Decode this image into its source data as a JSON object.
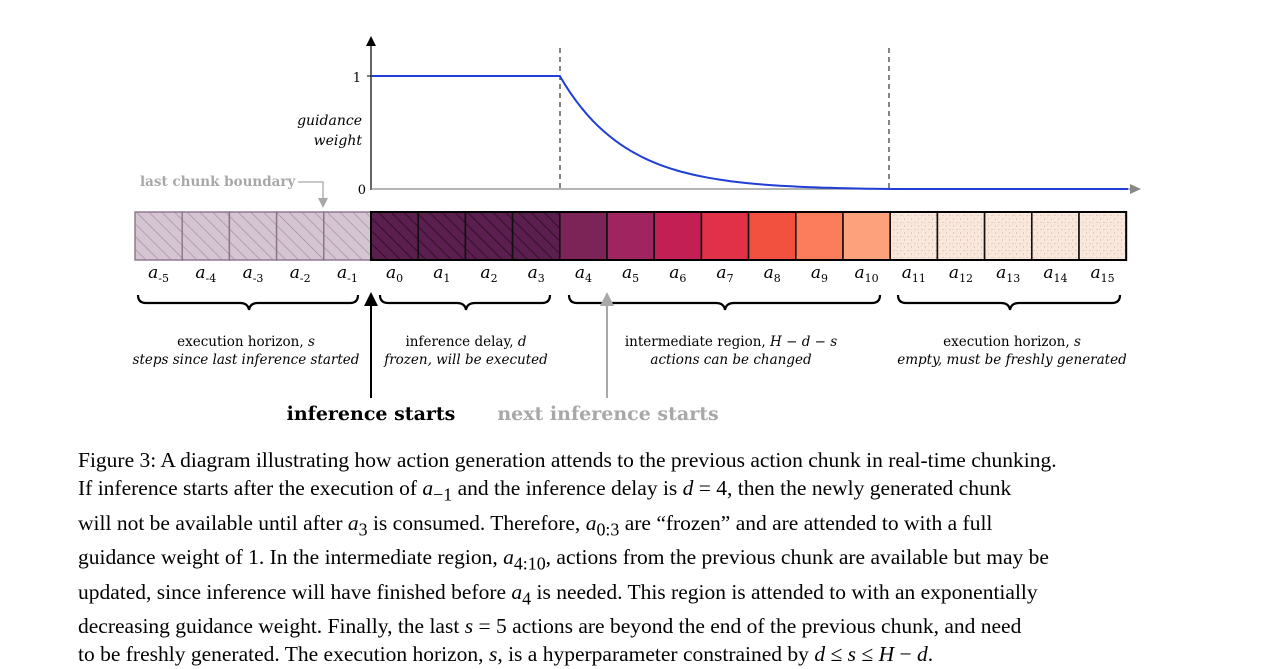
{
  "colors": {
    "curve": "#1f3fd6",
    "past_fill": "#d5c4d2",
    "past_hatch": "#a38aa0",
    "frozen_fill": "#5a1f4e",
    "frozen_hatch": "#2a0a22",
    "intermediate_fills": [
      "#7c2358",
      "#9f2460",
      "#c41f55",
      "#e03148",
      "#f35140",
      "#fb7d5b",
      "#fda07c"
    ],
    "future_fill": "#fbe8dc",
    "future_dots": "#b89a88",
    "gray_text": "#a8a8a8"
  },
  "plot": {
    "y_label_line1": "guidance",
    "y_label_line2": "weight",
    "y_tick_1": "1",
    "y_tick_0": "0",
    "curve_profile": {
      "flat_weight": 1,
      "flat_until_index": 3,
      "decay_from_index": 4,
      "decay_to_index": 10,
      "end_weight": 0,
      "shape": "exponential decay"
    }
  },
  "last_chunk_label": "last chunk boundary",
  "actions": [
    {
      "sym": "a",
      "sub": "-5",
      "region": "past"
    },
    {
      "sym": "a",
      "sub": "-4",
      "region": "past"
    },
    {
      "sym": "a",
      "sub": "-3",
      "region": "past"
    },
    {
      "sym": "a",
      "sub": "-2",
      "region": "past"
    },
    {
      "sym": "a",
      "sub": "-1",
      "region": "past"
    },
    {
      "sym": "a",
      "sub": "0",
      "region": "frozen"
    },
    {
      "sym": "a",
      "sub": "1",
      "region": "frozen"
    },
    {
      "sym": "a",
      "sub": "2",
      "region": "frozen"
    },
    {
      "sym": "a",
      "sub": "3",
      "region": "frozen"
    },
    {
      "sym": "a",
      "sub": "4",
      "region": "intermediate"
    },
    {
      "sym": "a",
      "sub": "5",
      "region": "intermediate"
    },
    {
      "sym": "a",
      "sub": "6",
      "region": "intermediate"
    },
    {
      "sym": "a",
      "sub": "7",
      "region": "intermediate"
    },
    {
      "sym": "a",
      "sub": "8",
      "region": "intermediate"
    },
    {
      "sym": "a",
      "sub": "9",
      "region": "intermediate"
    },
    {
      "sym": "a",
      "sub": "10",
      "region": "intermediate"
    },
    {
      "sym": "a",
      "sub": "11",
      "region": "future"
    },
    {
      "sym": "a",
      "sub": "12",
      "region": "future"
    },
    {
      "sym": "a",
      "sub": "13",
      "region": "future"
    },
    {
      "sym": "a",
      "sub": "14",
      "region": "future"
    },
    {
      "sym": "a",
      "sub": "15",
      "region": "future"
    }
  ],
  "regions": [
    {
      "line1": "execution horizon, ",
      "line1_var": "s",
      "line2": "steps since last inference started"
    },
    {
      "line1": "inference delay, ",
      "line1_var": "d",
      "line2": "frozen, will be executed"
    },
    {
      "line1": "intermediate region, ",
      "line1_var": "H − d − s",
      "line2": "actions can be changed"
    },
    {
      "line1": "execution horizon, ",
      "line1_var": "s",
      "line2": "empty, must be freshly generated"
    }
  ],
  "markers": {
    "inference_starts": "inference starts",
    "next_inference_starts": "next inference starts"
  },
  "caption": {
    "l1": "Figure 3: A diagram illustrating how action generation attends to the previous action chunk in real-time chunking.",
    "l2a": "If inference starts after the execution of ",
    "l2v1": "a",
    "l2s1": "−1",
    "l2b": " and the inference delay is ",
    "l2v2": "d",
    "l2c": " = 4, then the newly generated chunk",
    "l3a": "will not be available until after ",
    "l3v": "a",
    "l3s": "3",
    "l3b": " is consumed. Therefore, ",
    "l3v2": "a",
    "l3s2": "0:3",
    "l3c": " are “frozen” and are attended to with a full",
    "l4a": "guidance weight of 1. In the intermediate region, ",
    "l4v": "a",
    "l4s": "4:10",
    "l4b": ", actions from the previous chunk are available but may be",
    "l5a": "updated, since inference will have finished before ",
    "l5v": "a",
    "l5s": "4",
    "l5b": " is needed. This region is attended to with an exponentially",
    "l6a": "decreasing guidance weight. Finally, the last ",
    "l6v": "s",
    "l6b": " = 5 actions are beyond the end of the previous chunk, and need",
    "l7a": "to be freshly generated. The execution horizon, ",
    "l7v": "s",
    "l7b": ", is a hyperparameter constrained by ",
    "l7v2": "d",
    "l7c": " ≤ ",
    "l7v3": "s",
    "l7d": " ≤ ",
    "l7v4": "H",
    "l7e": " − ",
    "l7v5": "d",
    "l7f": "."
  }
}
